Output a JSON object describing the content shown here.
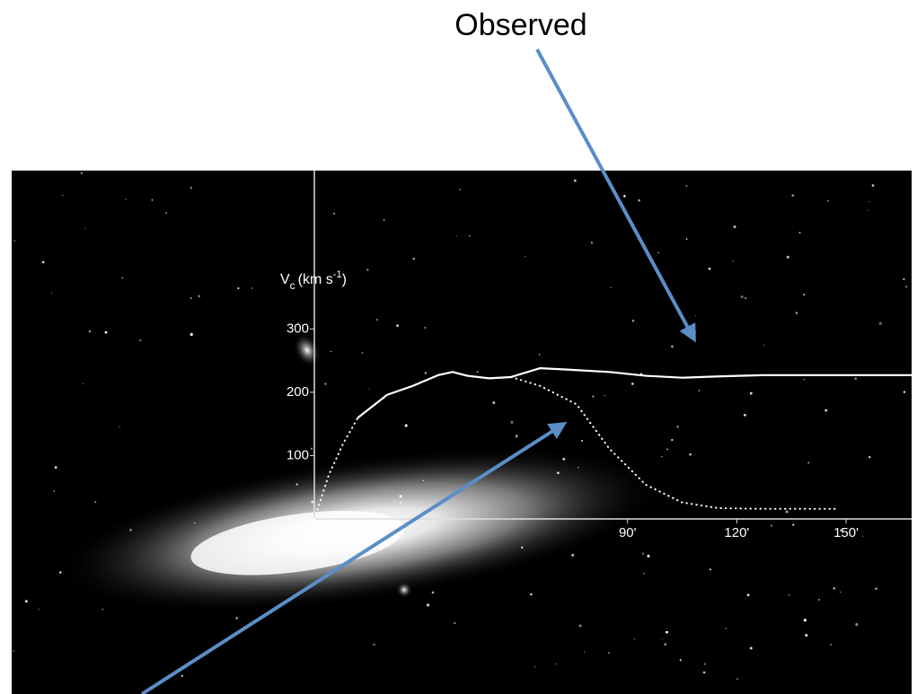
{
  "chart_data": {
    "type": "line",
    "annotation": "Observed",
    "y_label": {
      "base": "V",
      "sub": "c",
      "unit": "(km s",
      "sup": "-1",
      "close": ")"
    },
    "xlim": [
      4,
      168
    ],
    "ylim": [
      0,
      550
    ],
    "xticks": [
      {
        "value": 90,
        "label": "90'"
      },
      {
        "value": 120,
        "label": "120'"
      },
      {
        "value": 150,
        "label": "150'"
      }
    ],
    "yticks": [
      100,
      200,
      300
    ],
    "series": [
      {
        "color": "#ffffff",
        "style": "solid",
        "x": [
          16,
          24,
          31,
          38,
          42,
          46,
          52,
          58,
          66,
          76,
          85,
          95,
          105,
          115,
          127,
          140,
          152,
          168
        ],
        "values": [
          160,
          196,
          210,
          227,
          232,
          226,
          222,
          224,
          238,
          235,
          232,
          226,
          223,
          225,
          227,
          227,
          227,
          227
        ]
      },
      {
        "color": "#ffffff",
        "style": "dotted",
        "x": [
          4,
          8,
          12,
          16,
          24,
          31,
          38,
          42,
          46,
          52,
          58,
          66,
          76,
          85,
          95,
          105,
          115,
          127,
          148
        ],
        "values": [
          0,
          70,
          120,
          160,
          196,
          210,
          227,
          232,
          226,
          222,
          224,
          210,
          181,
          111,
          54,
          26,
          17,
          16,
          16
        ]
      }
    ]
  }
}
